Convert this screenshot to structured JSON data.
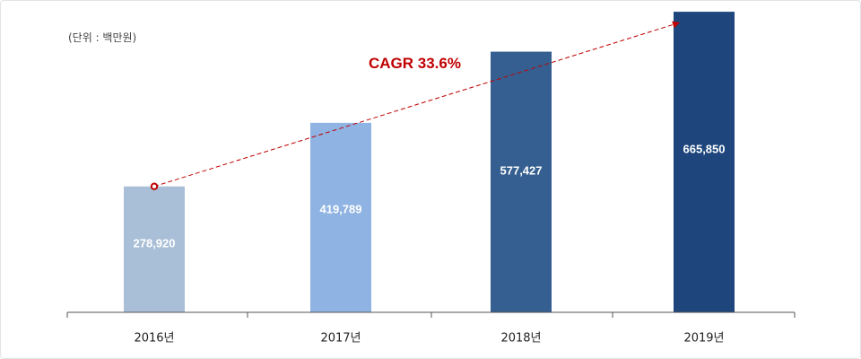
{
  "unit_label": "(단위 : 백만원)",
  "chart_data": {
    "type": "bar",
    "categories": [
      "2016년",
      "2017년",
      "2018년",
      "2019년"
    ],
    "values": [
      278920,
      419789,
      577427,
      665850
    ],
    "value_labels": [
      "278,920",
      "419,789",
      "577,427",
      "665,850"
    ],
    "bar_colors": [
      "#a9bfd7",
      "#8fb3e2",
      "#355f90",
      "#1e467c"
    ],
    "ylim": [
      0,
      672000
    ],
    "annotation": {
      "label": "CAGR 33.6%",
      "color": "#c00000",
      "from_index": 0,
      "to_index": 3
    },
    "title": "",
    "xlabel": "",
    "ylabel": ""
  }
}
